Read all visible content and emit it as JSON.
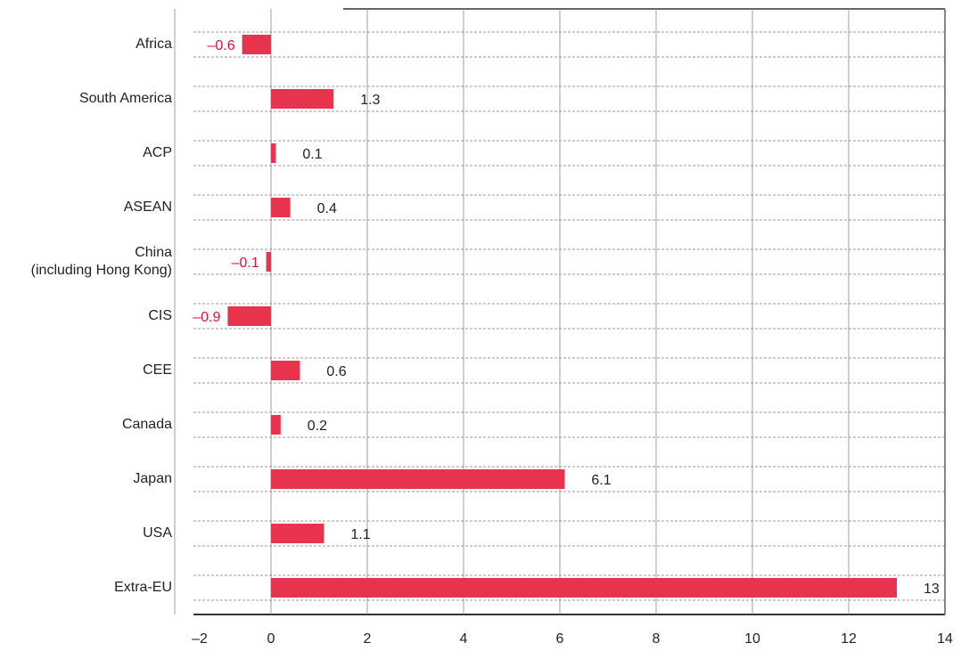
{
  "chart_data": {
    "type": "bar",
    "orientation": "horizontal",
    "categories": [
      "Africa",
      "South America",
      "ACP",
      "ASEAN",
      "China\n(including Hong Kong)",
      "CIS",
      "CEE",
      "Canada",
      "Japan",
      "USA",
      "Extra-EU"
    ],
    "values": [
      -0.6,
      1.3,
      0.1,
      0.4,
      -0.1,
      -0.9,
      0.6,
      0.2,
      6.1,
      1.1,
      13
    ],
    "value_labels": [
      "–0.6",
      "1.3",
      "0.1",
      "0.4",
      "–0.1",
      "–0.9",
      "0.6",
      "0.2",
      "6.1",
      "1.1",
      "13"
    ],
    "color": "#e8334f",
    "negative_label_color": "#e0103a",
    "xlim": [
      -2,
      14
    ],
    "xticks": [
      {
        "value": -2,
        "label": "–2"
      },
      0,
      2,
      4,
      6,
      8,
      10,
      12,
      14
    ],
    "grid": true
  }
}
